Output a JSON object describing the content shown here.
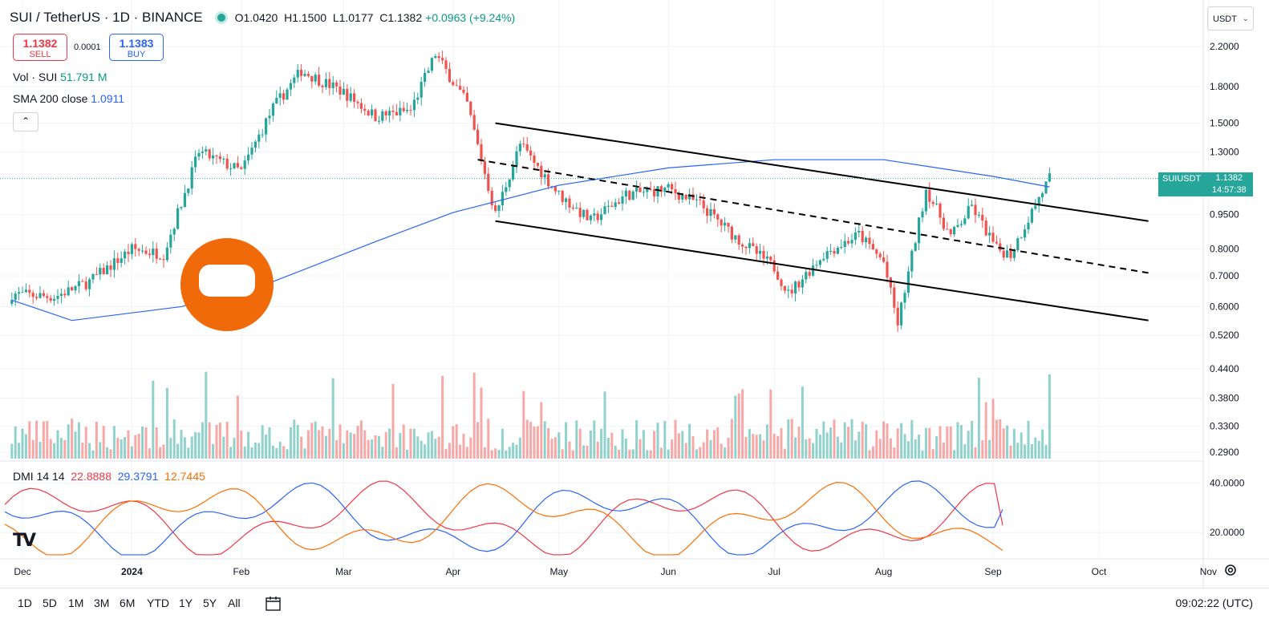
{
  "header": {
    "symbol": "SUI / TetherUS · 1D · BINANCE",
    "ohlc_open": "O1.0420",
    "ohlc_high": "H1.1500",
    "ohlc_low": "L1.0177",
    "ohlc_close": "C1.1382",
    "change": "+0.0963 (+9.24%)"
  },
  "trade": {
    "sell_price": "1.1382",
    "sell_label": "SELL",
    "spread": "0.0001",
    "buy_price": "1.1383",
    "buy_label": "BUY"
  },
  "indicators": {
    "vol_label": "Vol · SUI",
    "vol_value": "51.791 M",
    "sma_label": "SMA 200 close",
    "sma_value": "1.0911",
    "dmi_label": "DMI 14 14",
    "dmi_plus": "22.8888",
    "dmi_minus": "29.3791",
    "adx": "12.7445",
    "collapse_icon": "chevron-up-icon"
  },
  "currency": "USDT",
  "last_price": {
    "symbol": "SUIUSDT",
    "price": "1.1382",
    "countdown": "14:57:38"
  },
  "range_buttons": [
    "1D",
    "5D",
    "1M",
    "3M",
    "6M",
    "YTD",
    "1Y",
    "5Y",
    "All"
  ],
  "clock": "09:02:22 (UTC)",
  "colors": {
    "up": "#26a69a",
    "down": "#ef5350",
    "sma": "#2962ff",
    "dmi_plus": "#f23645",
    "dmi_minus": "#2962ff",
    "adx": "#ff6d00",
    "watermark": "#f06a0a"
  },
  "chart_data": {
    "type": "candlestick",
    "title": "SUI / TetherUS · 1D · BINANCE",
    "scale": "log",
    "y_ticks": [
      2.2,
      1.8,
      1.5,
      1.3,
      0.95,
      0.8,
      0.7,
      0.6,
      0.52,
      0.44,
      0.38,
      0.33,
      0.29
    ],
    "y_tick_labels": [
      "2.2000",
      "1.8000",
      "1.5000",
      "1.3000",
      "0.9500",
      "0.8000",
      "0.7000",
      "0.6000",
      "0.5200",
      "0.4400",
      "0.3800",
      "0.3300",
      "0.2900"
    ],
    "x_ticks": [
      "Dec",
      "2024",
      "Feb",
      "Mar",
      "Apr",
      "May",
      "Jun",
      "Jul",
      "Aug",
      "Sep",
      "Oct",
      "Nov"
    ],
    "price_series": [
      [
        "2023-11-28",
        0.64
      ],
      [
        "2023-12-10",
        0.63
      ],
      [
        "2023-12-20",
        0.68
      ],
      [
        "2024-01-01",
        0.8
      ],
      [
        "2024-01-10",
        0.78
      ],
      [
        "2024-01-20",
        1.3
      ],
      [
        "2024-02-01",
        1.18
      ],
      [
        "2024-02-10",
        1.62
      ],
      [
        "2024-02-18",
        1.95
      ],
      [
        "2024-03-01",
        1.75
      ],
      [
        "2024-03-10",
        1.55
      ],
      [
        "2024-03-20",
        1.6
      ],
      [
        "2024-03-27",
        2.12
      ],
      [
        "2024-04-05",
        1.65
      ],
      [
        "2024-04-13",
        0.95
      ],
      [
        "2024-04-20",
        1.35
      ],
      [
        "2024-05-01",
        1.05
      ],
      [
        "2024-05-10",
        0.92
      ],
      [
        "2024-05-20",
        1.05
      ],
      [
        "2024-06-01",
        1.08
      ],
      [
        "2024-06-10",
        1.0
      ],
      [
        "2024-06-20",
        0.85
      ],
      [
        "2024-07-01",
        0.73
      ],
      [
        "2024-07-05",
        0.64
      ],
      [
        "2024-07-15",
        0.78
      ],
      [
        "2024-07-25",
        0.86
      ],
      [
        "2024-08-01",
        0.75
      ],
      [
        "2024-08-05",
        0.55
      ],
      [
        "2024-08-10",
        0.84
      ],
      [
        "2024-08-13",
        1.08
      ],
      [
        "2024-08-20",
        0.85
      ],
      [
        "2024-08-26",
        0.99
      ],
      [
        "2024-09-02",
        0.8
      ],
      [
        "2024-09-06",
        0.78
      ],
      [
        "2024-09-10",
        0.9
      ],
      [
        "2024-09-13",
        1.0
      ],
      [
        "2024-09-17",
        1.14
      ]
    ],
    "sma200_series": [
      [
        "2023-11-28",
        0.62
      ],
      [
        "2023-12-15",
        0.56
      ],
      [
        "2024-01-15",
        0.6
      ],
      [
        "2024-02-10",
        0.68
      ],
      [
        "2024-03-10",
        0.83
      ],
      [
        "2024-04-01",
        0.96
      ],
      [
        "2024-05-01",
        1.1
      ],
      [
        "2024-06-01",
        1.2
      ],
      [
        "2024-07-01",
        1.25
      ],
      [
        "2024-08-01",
        1.25
      ],
      [
        "2024-09-01",
        1.15
      ],
      [
        "2024-09-17",
        1.0911
      ]
    ],
    "channel_upper": [
      [
        "2024-04-13",
        1.5
      ],
      [
        "2024-10-15",
        0.92
      ]
    ],
    "channel_middle": [
      [
        "2024-04-08",
        1.25
      ],
      [
        "2024-10-15",
        0.71
      ]
    ],
    "channel_lower": [
      [
        "2024-04-13",
        0.92
      ],
      [
        "2024-10-15",
        0.56
      ]
    ],
    "dmi_ylim": [
      10,
      48
    ],
    "dmi_y_ticks": [
      40,
      20
    ],
    "dmi_y_tick_labels": [
      "40.0000",
      "20.0000"
    ],
    "last_values": {
      "price": 1.1382,
      "sma200": 1.0911,
      "dmi_plus": 22.8888,
      "dmi_minus": 29.3791,
      "adx": 12.7445,
      "volume_m": 51.791
    }
  }
}
